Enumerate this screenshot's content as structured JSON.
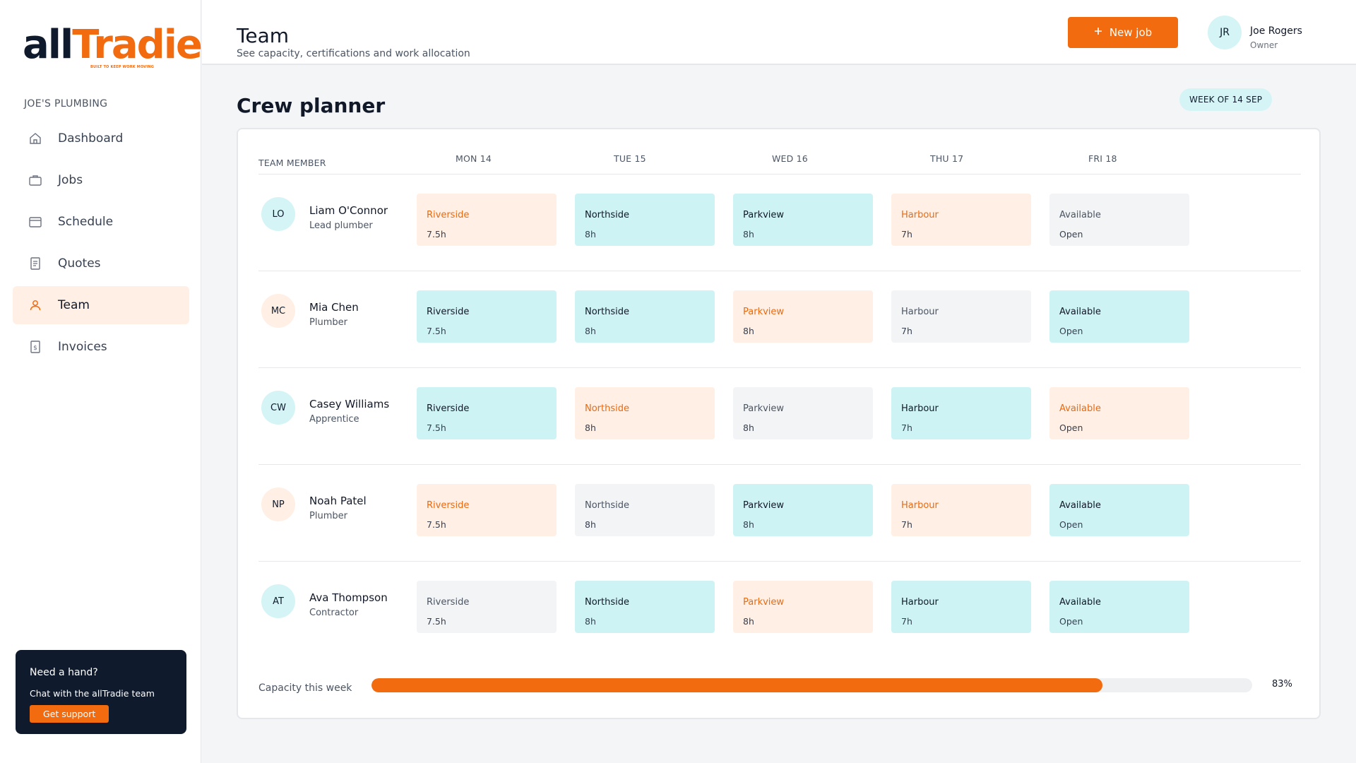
{
  "brand": {
    "logo_all": "all",
    "logo_tradie": "Tradie",
    "tagline": "BUILT TO KEEP WORK MOVING",
    "accent": "#f26b0f",
    "navy": "#0f1b2d",
    "teal": "#cdf3f5"
  },
  "sidebar": {
    "org": "JOE'S PLUMBING",
    "items": [
      {
        "label": "Dashboard",
        "icon": "home-icon"
      },
      {
        "label": "Jobs",
        "icon": "briefcase-icon"
      },
      {
        "label": "Schedule",
        "icon": "calendar-icon"
      },
      {
        "label": "Quotes",
        "icon": "document-icon"
      },
      {
        "label": "Team",
        "icon": "user-icon",
        "active": true
      },
      {
        "label": "Invoices",
        "icon": "invoice-icon"
      }
    ],
    "help": {
      "title": "Need a hand?",
      "subtitle": "Chat with the allTradie team",
      "button": "Get support"
    }
  },
  "header": {
    "title": "Team",
    "subtitle": "See capacity, certifications and work allocation",
    "new_job": "New job",
    "new_job_icon": "plus-icon",
    "user": {
      "initials": "JR",
      "name": "Joe Rogers",
      "role": "Owner"
    }
  },
  "planner": {
    "title": "Crew planner",
    "week": "WEEK OF 14 SEP",
    "member_header": "TEAM MEMBER",
    "days": [
      "MON 14",
      "TUE 15",
      "WED 16",
      "THU 17",
      "FRI 18"
    ],
    "members": [
      {
        "initials": "LO",
        "name": "Liam O'Connor",
        "role": "Lead plumber",
        "avatar_color": "#d4f4f6",
        "cells": [
          {
            "site": "Riverside",
            "hours": "7.5h",
            "style": "orange"
          },
          {
            "site": "Northside",
            "hours": "8h",
            "style": "teal"
          },
          {
            "site": "Parkview",
            "hours": "8h",
            "style": "teal"
          },
          {
            "site": "Harbour",
            "hours": "7h",
            "style": "orange"
          },
          {
            "site": "Available",
            "hours": "Open",
            "style": "gray"
          }
        ]
      },
      {
        "initials": "MC",
        "name": "Mia Chen",
        "role": "Plumber",
        "avatar_color": "#ffefe4",
        "cells": [
          {
            "site": "Riverside",
            "hours": "7.5h",
            "style": "teal"
          },
          {
            "site": "Northside",
            "hours": "8h",
            "style": "teal"
          },
          {
            "site": "Parkview",
            "hours": "8h",
            "style": "orange"
          },
          {
            "site": "Harbour",
            "hours": "7h",
            "style": "gray"
          },
          {
            "site": "Available",
            "hours": "Open",
            "style": "teal"
          }
        ]
      },
      {
        "initials": "CW",
        "name": "Casey Williams",
        "role": "Apprentice",
        "avatar_color": "#d4f4f6",
        "cells": [
          {
            "site": "Riverside",
            "hours": "7.5h",
            "style": "teal"
          },
          {
            "site": "Northside",
            "hours": "8h",
            "style": "orange"
          },
          {
            "site": "Parkview",
            "hours": "8h",
            "style": "gray"
          },
          {
            "site": "Harbour",
            "hours": "7h",
            "style": "teal"
          },
          {
            "site": "Available",
            "hours": "Open",
            "style": "orange"
          }
        ]
      },
      {
        "initials": "NP",
        "name": "Noah Patel",
        "role": "Plumber",
        "avatar_color": "#ffefe4",
        "cells": [
          {
            "site": "Riverside",
            "hours": "7.5h",
            "style": "orange"
          },
          {
            "site": "Northside",
            "hours": "8h",
            "style": "gray"
          },
          {
            "site": "Parkview",
            "hours": "8h",
            "style": "teal"
          },
          {
            "site": "Harbour",
            "hours": "7h",
            "style": "orange"
          },
          {
            "site": "Available",
            "hours": "Open",
            "style": "teal"
          }
        ]
      },
      {
        "initials": "AT",
        "name": "Ava Thompson",
        "role": "Contractor",
        "avatar_color": "#d4f4f6",
        "cells": [
          {
            "site": "Riverside",
            "hours": "7.5h",
            "style": "gray"
          },
          {
            "site": "Northside",
            "hours": "8h",
            "style": "teal"
          },
          {
            "site": "Parkview",
            "hours": "8h",
            "style": "orange"
          },
          {
            "site": "Harbour",
            "hours": "7h",
            "style": "teal"
          },
          {
            "site": "Available",
            "hours": "Open",
            "style": "teal"
          }
        ]
      }
    ],
    "capacity": {
      "label": "Capacity this week",
      "percent": 83,
      "percent_label": "83%"
    }
  }
}
